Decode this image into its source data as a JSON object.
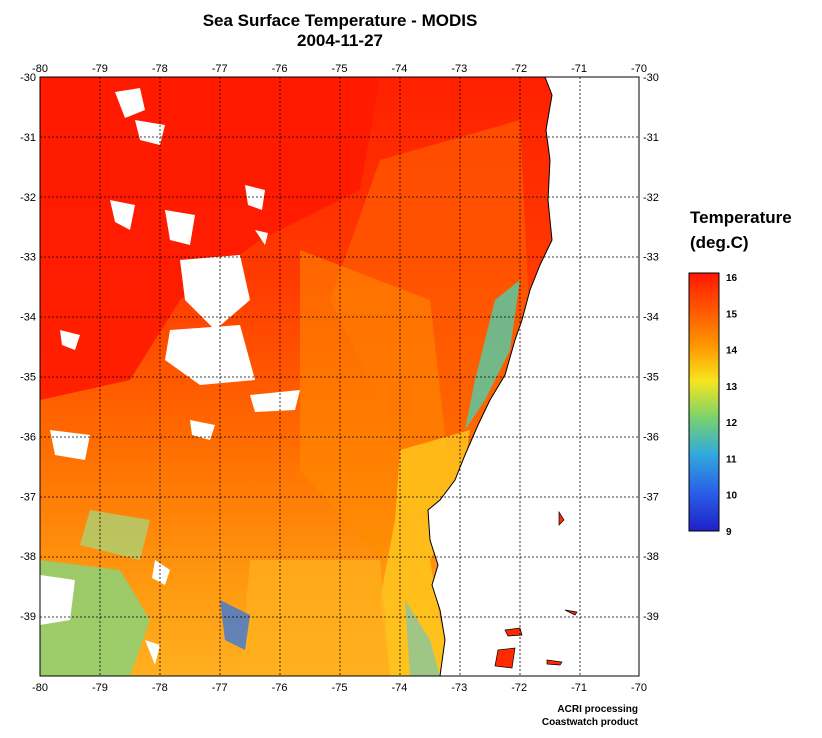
{
  "title": "Sea Surface Temperature - MODIS",
  "date": "2004-11-27",
  "legend": {
    "title_line1": "Temperature",
    "title_line2": "(deg.C)",
    "min": 9,
    "max": 16,
    "labels": [
      "16",
      "15",
      "14",
      "13",
      "12",
      "11",
      "10",
      "9"
    ]
  },
  "axes": {
    "lon_labels": [
      "-80",
      "-79",
      "-78",
      "-77",
      "-76",
      "-75",
      "-74",
      "-73",
      "-72",
      "-71",
      "-70"
    ],
    "lat_labels": [
      "-30",
      "-31",
      "-32",
      "-33",
      "-34",
      "-35",
      "-36",
      "-37",
      "-38",
      "-39"
    ],
    "lon_range": [
      -80,
      -70
    ],
    "lat_range": [
      -30,
      -40
    ]
  },
  "credits": {
    "line1": "ACRI processing",
    "line2": "Coastwatch product"
  },
  "colors": {
    "warm": "#ff1800",
    "orange": "#ff8c00",
    "yellow": "#f5e61e",
    "green": "#7ad26e",
    "cyan": "#32aadc",
    "blue": "#1e2dcd",
    "land": "#ffffff",
    "cloud": "#ffffff"
  }
}
